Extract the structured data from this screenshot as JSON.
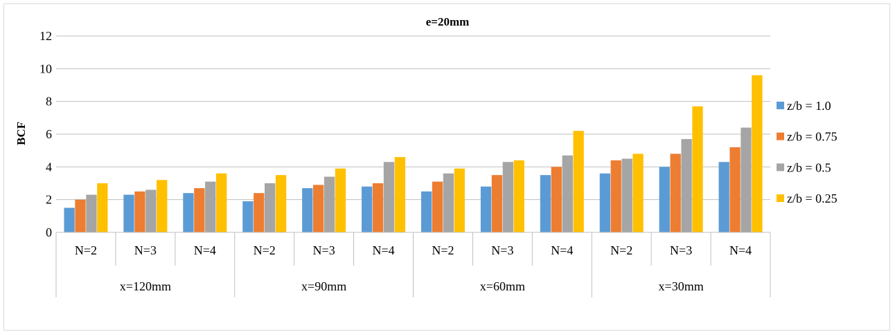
{
  "chart_data": {
    "type": "bar",
    "title": "e=20mm",
    "xlabel": "",
    "ylabel": "BCF",
    "ylim": [
      0,
      12
    ],
    "yticks": [
      0,
      2,
      4,
      6,
      8,
      10,
      12
    ],
    "grid": true,
    "legend_position": "right",
    "groups": [
      {
        "label": "x=120mm",
        "categories": [
          "N=2",
          "N=3",
          "N=4"
        ]
      },
      {
        "label": "x=90mm",
        "categories": [
          "N=2",
          "N=3",
          "N=4"
        ]
      },
      {
        "label": "x=60mm",
        "categories": [
          "N=2",
          "N=3",
          "N=4"
        ]
      },
      {
        "label": "x=30mm",
        "categories": [
          "N=2",
          "N=3",
          "N=4"
        ]
      }
    ],
    "series": [
      {
        "name": "z/b = 1.0",
        "color": "#5b9bd5",
        "values": [
          1.5,
          2.3,
          2.4,
          1.9,
          2.7,
          2.8,
          2.5,
          2.8,
          3.5,
          3.6,
          4.0,
          4.3
        ]
      },
      {
        "name": "z/b = 0.75",
        "color": "#ed7d31",
        "values": [
          2.0,
          2.5,
          2.7,
          2.4,
          2.9,
          3.0,
          3.1,
          3.5,
          4.0,
          4.4,
          4.8,
          5.2
        ]
      },
      {
        "name": "z/b = 0.5",
        "color": "#a5a5a5",
        "values": [
          2.3,
          2.6,
          3.1,
          3.0,
          3.4,
          4.3,
          3.6,
          4.3,
          4.7,
          4.5,
          5.7,
          6.4
        ]
      },
      {
        "name": "z/b = 0.25",
        "color": "#ffc000",
        "values": [
          3.0,
          3.2,
          3.6,
          3.5,
          3.9,
          4.6,
          3.9,
          4.4,
          6.2,
          4.8,
          7.7,
          9.6
        ]
      }
    ]
  }
}
